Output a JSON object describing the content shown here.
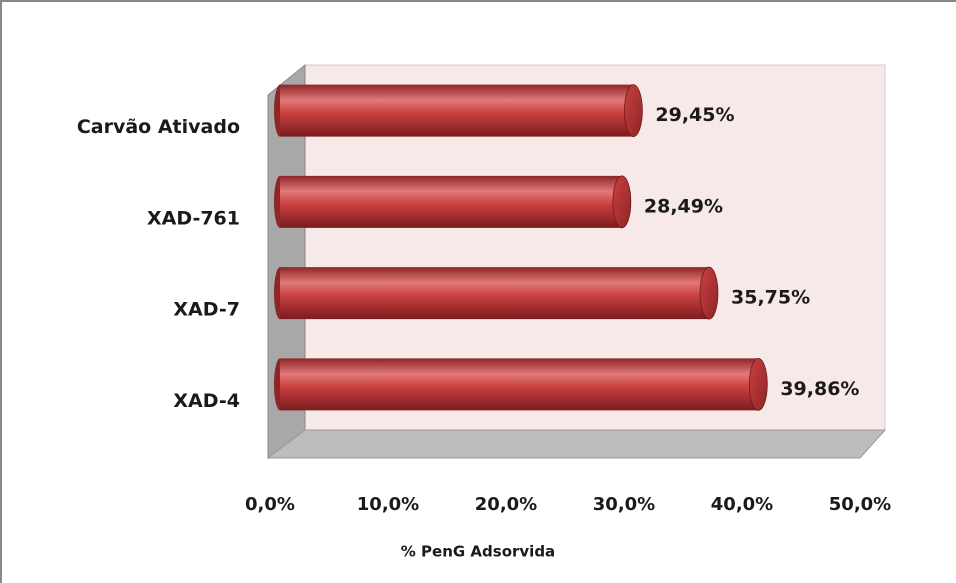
{
  "chart_data": {
    "type": "bar",
    "orientation": "horizontal",
    "three_d": true,
    "xlabel": "% PenG Adsorvida",
    "categories": [
      "Carvão Ativado",
      "XAD-761",
      "XAD-7",
      "XAD-4"
    ],
    "values": [
      29.45,
      28.49,
      35.75,
      39.86
    ],
    "value_labels": [
      "29,45%",
      "28,49%",
      "35,75%",
      "39,86%"
    ],
    "color": "#c0393b",
    "xlim": [
      0,
      50
    ],
    "xticks": [
      {
        "value": 0,
        "label": "0,0%"
      },
      {
        "value": 10,
        "label": "10,0%"
      },
      {
        "value": 20,
        "label": "20,0%"
      },
      {
        "value": 30,
        "label": "30,0%"
      },
      {
        "value": 40,
        "label": "40,0%"
      },
      {
        "value": 50,
        "label": "50,0%"
      }
    ]
  }
}
